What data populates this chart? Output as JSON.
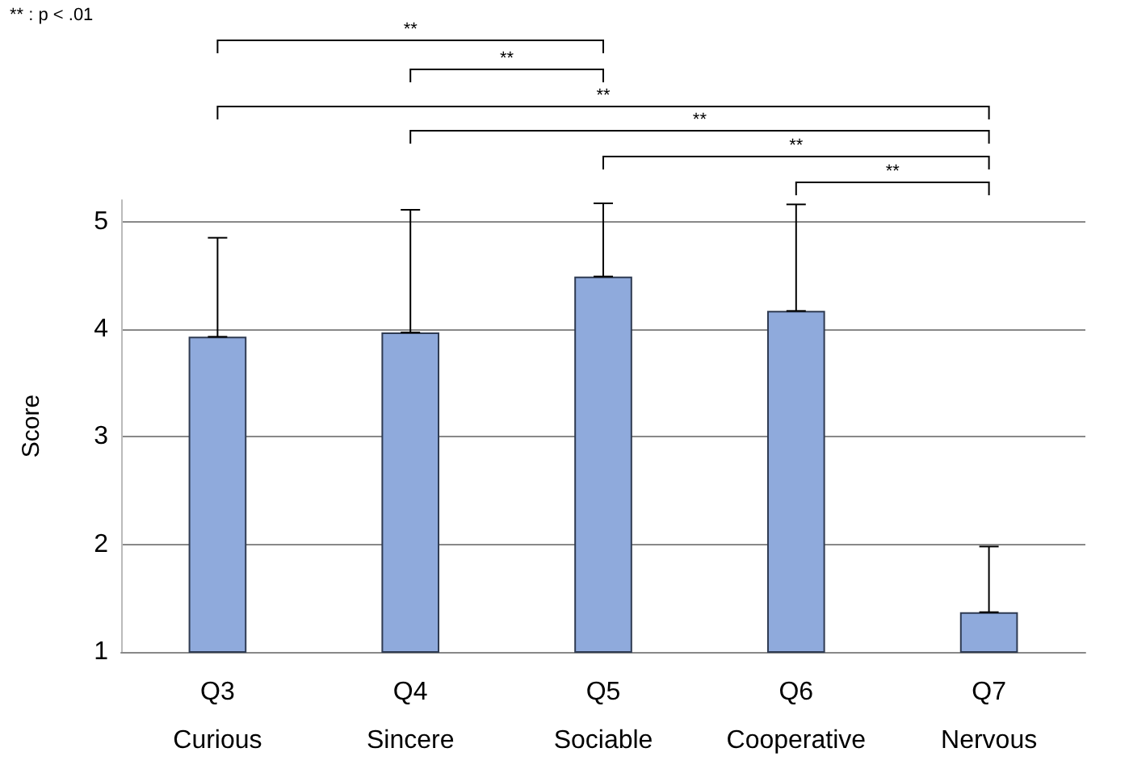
{
  "chart_data": {
    "type": "bar",
    "ylabel": "Score",
    "categories": [
      "Q3\nCurious",
      "Q4\nSincere",
      "Q5\nSociable",
      "Q6\nCooperative",
      "Q7\nNervous"
    ],
    "values": [
      3.93,
      3.97,
      4.49,
      4.17,
      1.37
    ],
    "errors": [
      [
        3.93,
        4.85
      ],
      [
        3.97,
        5.11
      ],
      [
        4.49,
        5.17
      ],
      [
        4.17,
        5.16
      ],
      [
        1.37,
        1.98
      ]
    ],
    "color": "#8faadc",
    "ylim": [
      1,
      5.2
    ],
    "yticks": [
      1,
      2,
      3,
      4,
      5
    ],
    "grid": "y",
    "annotations": [
      "** : p < .01",
      "**",
      "**",
      "**",
      "**",
      "**",
      "**"
    ]
  }
}
